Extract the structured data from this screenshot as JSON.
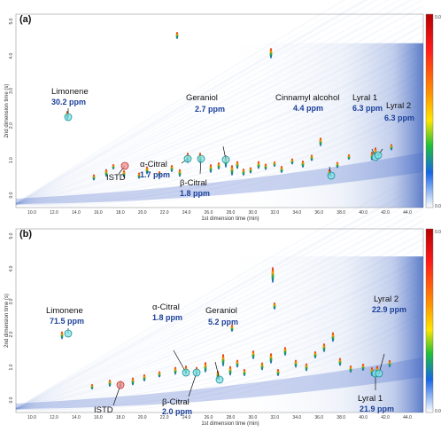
{
  "panels": [
    {
      "letter": "(a)",
      "xlabel": "1st dimension time (min)",
      "ylabel": "2nd dimension time (s)",
      "xticks": [
        "10.0",
        "12.0",
        "14.0",
        "16.0",
        "18.0",
        "20.0",
        "22.0",
        "24.0",
        "26.0",
        "28.0",
        "30.0",
        "32.0",
        "34.0",
        "36.0",
        "38.0",
        "40.0",
        "42.0",
        "44.0"
      ],
      "yticks": [
        "0.0",
        "1.0",
        "2.0",
        "3.0",
        "4.0",
        "5.0"
      ],
      "scale": {
        "top": "0.07",
        "bottom": "0.00"
      },
      "annotations": [
        {
          "name": "Limonene",
          "ppm": "30.2 ppm",
          "ring": "cyan"
        },
        {
          "name": "ISTD",
          "ppm": "",
          "ring": "red"
        },
        {
          "name": "α-Citral",
          "ppm": "1.7 ppm",
          "ring": "cyan"
        },
        {
          "name": "β-Citral",
          "ppm": "1.8 ppm",
          "ring": "cyan"
        },
        {
          "name": "Geraniol",
          "ppm": "2.7 ppm",
          "ring": "cyan"
        },
        {
          "name": "Cinnamyl alcohol",
          "ppm": "4.4 ppm",
          "ring": "cyan"
        },
        {
          "name": "Lyral 1",
          "ppm": "6.3 ppm",
          "ring": "cyan"
        },
        {
          "name": "Lyral 2",
          "ppm": "6.3 ppm",
          "ring": "cyan"
        }
      ]
    },
    {
      "letter": "(b)",
      "xlabel": "1st dimension time (min)",
      "ylabel": "2nd dimension time (s)",
      "xticks": [
        "10.0",
        "12.0",
        "14.0",
        "16.0",
        "18.0",
        "20.0",
        "22.0",
        "24.0",
        "26.0",
        "28.0",
        "30.0",
        "32.0",
        "34.0",
        "36.0",
        "38.0",
        "40.0",
        "42.0",
        "44.0"
      ],
      "yticks": [
        "0.0",
        "1.0",
        "2.0",
        "3.0",
        "4.0",
        "5.0"
      ],
      "scale": {
        "top": "0.05",
        "bottom": "0.00"
      },
      "annotations": [
        {
          "name": "Limonene",
          "ppm": "71.5 ppm",
          "ring": "cyan"
        },
        {
          "name": "ISTD",
          "ppm": "",
          "ring": "red"
        },
        {
          "name": "α-Citral",
          "ppm": "1.8 ppm",
          "ring": "cyan"
        },
        {
          "name": "β-Citral",
          "ppm": "2.0 ppm",
          "ring": "cyan"
        },
        {
          "name": "Geraniol",
          "ppm": "5.2 ppm",
          "ring": "cyan"
        },
        {
          "name": "Lyral 1",
          "ppm": "21.9 ppm",
          "ring": "cyan"
        },
        {
          "name": "Lyral 2",
          "ppm": "22.9 ppm",
          "ring": "cyan"
        }
      ]
    }
  ],
  "chart_data": [
    {
      "type": "heatmap",
      "title": "(a)",
      "xlabel": "1st dimension time (min)",
      "ylabel": "2nd dimension time (s)",
      "xlim": [
        9,
        45
      ],
      "ylim": [
        0,
        5
      ],
      "color_scale": [
        "0.00",
        "0.07"
      ],
      "points": [
        {
          "label": "Limonene",
          "x": 12.3,
          "y": 2.0,
          "value": "30.2 ppm"
        },
        {
          "label": "ISTD",
          "x": 18.8,
          "y": 1.0,
          "value": ""
        },
        {
          "label": "α-Citral",
          "x": 23.2,
          "y": 1.2,
          "value": "1.7 ppm"
        },
        {
          "label": "β-Citral",
          "x": 24.0,
          "y": 1.2,
          "value": "1.8 ppm"
        },
        {
          "label": "Geraniol",
          "x": 26.3,
          "y": 1.3,
          "value": "2.7 ppm"
        },
        {
          "label": "Cinnamyl alcohol",
          "x": 35.6,
          "y": 0.7,
          "value": "4.4 ppm"
        },
        {
          "label": "Lyral 1",
          "x": 39.6,
          "y": 1.2,
          "value": "6.3 ppm"
        },
        {
          "label": "Lyral 2",
          "x": 39.9,
          "y": 1.3,
          "value": "6.3 ppm"
        }
      ]
    },
    {
      "type": "heatmap",
      "title": "(b)",
      "xlabel": "1st dimension time (min)",
      "ylabel": "2nd dimension time (s)",
      "xlim": [
        9,
        45
      ],
      "ylim": [
        0,
        5
      ],
      "color_scale": [
        "0.00",
        "0.05"
      ],
      "points": [
        {
          "label": "Limonene",
          "x": 12.3,
          "y": 2.0,
          "value": "71.5 ppm"
        },
        {
          "label": "ISTD",
          "x": 17.8,
          "y": 0.9,
          "value": ""
        },
        {
          "label": "α-Citral",
          "x": 22.5,
          "y": 1.2,
          "value": "1.8 ppm"
        },
        {
          "label": "β-Citral",
          "x": 23.3,
          "y": 1.2,
          "value": "2.0 ppm"
        },
        {
          "label": "Geraniol",
          "x": 26.0,
          "y": 1.1,
          "value": "5.2 ppm"
        },
        {
          "label": "Lyral 1",
          "x": 39.3,
          "y": 1.1,
          "value": "21.9 ppm"
        },
        {
          "label": "Lyral 2",
          "x": 39.7,
          "y": 1.1,
          "value": "22.9 ppm"
        }
      ]
    }
  ]
}
